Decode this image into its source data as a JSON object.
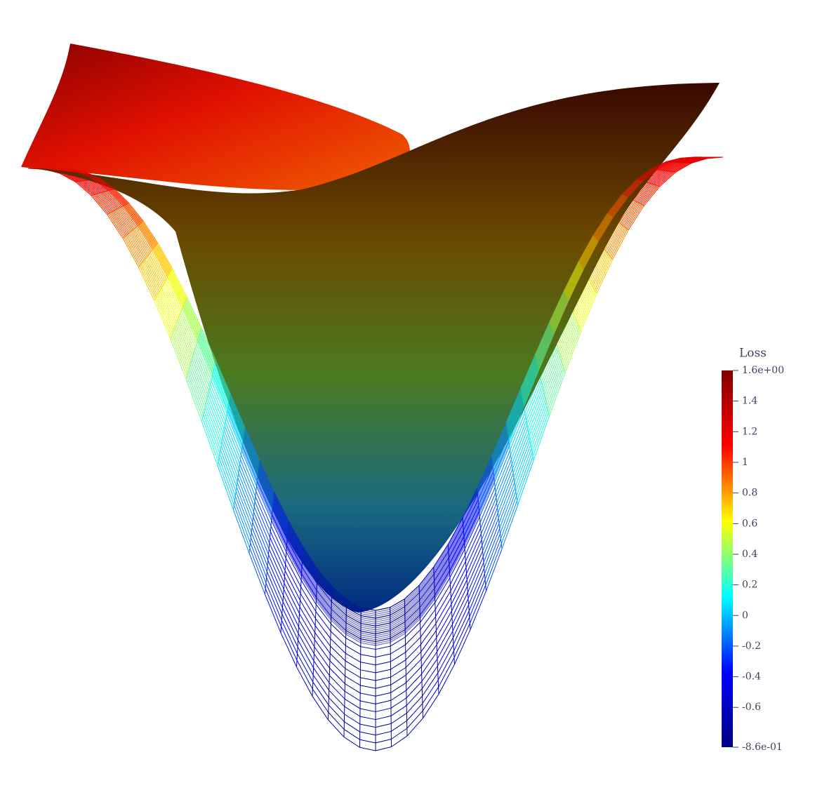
{
  "chart_data": {
    "type": "surface",
    "colorbar": {
      "title": "Loss",
      "colormap": [
        "#00007f",
        "#0000ff",
        "#00ffff",
        "#ffff00",
        "#ff0000",
        "#7f0000"
      ],
      "lim": [
        -0.86,
        1.6
      ],
      "ticks": [
        {
          "value": 1.6,
          "label": "1.6e+00"
        },
        1.4,
        1.2,
        1,
        0.8,
        0.6,
        0.4,
        0.2,
        0,
        -0.2,
        -0.4,
        -0.6,
        {
          "value": -0.86,
          "label": "-8.6e-01"
        }
      ]
    }
  }
}
